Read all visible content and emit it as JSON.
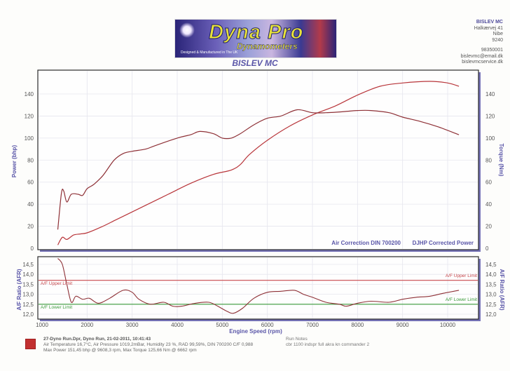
{
  "header": {
    "logo": {
      "brand": "Dyna Pro",
      "subtitle": "Dynamometers",
      "tagline": "Designed & Manufactured in The UK"
    },
    "title": "BISLEV MC",
    "company": {
      "name": "BISLEV MC",
      "street": "Halkærvej 41",
      "city": "Nibe",
      "postcode": "9240",
      "phone": "98350001",
      "email": "bislevmc@email.dk",
      "website": "bislevmcservice.dk"
    }
  },
  "power_chart": {
    "left_label": "Power (bhp)",
    "right_label": "Torque (Nm)",
    "annotation_correction": "Air Correction DIN 700200",
    "annotation_power": "DJHP Corrected Power"
  },
  "afr_chart": {
    "left_label": "A/F Ratio (AFR)",
    "right_label": "A/F Ratio (AFR)",
    "upper_limit_label": "A/F Upper Limit",
    "lower_limit_label": "A/F Lower Limit",
    "xlabel": "Engine Speed (rpm)"
  },
  "footer": {
    "run_line": "27-Dyno Run.Dpr,   Dyno Run,   21-02-2011,   10:41:43",
    "conditions": "Air Temperature 16,7°C, Air Pressure 1019,2mBar, Humidity 23 %, RAD 99,59%,   DIN 700200  C/F 0,988",
    "maxima": "Max Power 151,45 bhp @ 9608,3 rpm, Max Torque 125,66 Nm @ 6662 rpm",
    "notes_label": "Run Notes",
    "notes_text": "cbr 1100 indspr full akra kn commander 2",
    "run_color": "#c23030"
  },
  "colors": {
    "curve": "#b8353a",
    "torque_curve": "#8e3036",
    "upper_limit": "#c8484c",
    "lower_limit": "#3a9a3a",
    "axis_text": "#5a56a8",
    "frame_shadow": "#5c58a8"
  },
  "chart_data": [
    {
      "type": "line",
      "title": "BISLEV MC",
      "xlabel": "Engine Speed (rpm)",
      "ylabel": "Power (bhp)",
      "y2label": "Torque (Nm)",
      "xlim": [
        1000,
        10700
      ],
      "ylim": [
        0,
        155
      ],
      "y2lim": [
        0,
        155
      ],
      "grid": true,
      "x_ticks": [
        1000,
        2000,
        3000,
        4000,
        5000,
        6000,
        7000,
        8000,
        9000,
        10000
      ],
      "y_ticks": [
        0,
        20,
        40,
        60,
        80,
        100,
        120,
        140
      ],
      "y2_ticks": [
        0,
        20,
        40,
        60,
        80,
        100,
        120,
        140
      ],
      "series": [
        {
          "name": "Power (bhp)",
          "axis": "left",
          "x": [
            1350,
            1450,
            1550,
            1700,
            1850,
            2000,
            2300,
            2600,
            2900,
            3300,
            3800,
            4300,
            4800,
            5200,
            5400,
            5600,
            6000,
            6500,
            7000,
            7500,
            8000,
            8500,
            9000,
            9608,
            10000,
            10250
          ],
          "values": [
            3,
            10,
            8,
            12,
            13,
            14,
            19,
            25,
            31,
            39,
            49,
            59,
            67,
            71,
            76,
            85,
            98,
            111,
            121,
            129,
            139,
            147,
            150,
            151.45,
            150,
            147
          ]
        },
        {
          "name": "Torque (Nm)",
          "axis": "right",
          "x": [
            1350,
            1430,
            1480,
            1550,
            1650,
            1800,
            1900,
            2000,
            2150,
            2350,
            2600,
            2800,
            3000,
            3300,
            3500,
            4000,
            4300,
            4500,
            4800,
            5000,
            5200,
            5400,
            5700,
            6000,
            6300,
            6662,
            7000,
            7300,
            7700,
            8000,
            8300,
            8700,
            9000,
            9400,
            9800,
            10250
          ],
          "values": [
            17,
            50,
            52,
            42,
            49,
            49,
            48,
            54,
            58,
            66,
            80,
            86,
            88,
            90,
            93,
            100,
            103,
            106,
            104,
            100,
            100,
            104,
            112,
            118,
            120,
            125.66,
            123,
            123,
            124,
            125,
            125,
            123,
            119,
            115,
            110,
            103
          ]
        }
      ],
      "annotations": [
        "Air Correction DIN 700200",
        "DJHP Corrected Power"
      ]
    },
    {
      "type": "line",
      "xlabel": "Engine Speed (rpm)",
      "ylabel": "A/F Ratio (AFR)",
      "xlim": [
        1000,
        10700
      ],
      "ylim": [
        11.9,
        14.8
      ],
      "grid": true,
      "x_ticks": [
        1000,
        2000,
        3000,
        4000,
        5000,
        6000,
        7000,
        8000,
        9000,
        10000
      ],
      "y_ticks": [
        12.0,
        12.5,
        13.0,
        13.5,
        14.0,
        14.5
      ],
      "reference_lines": [
        {
          "name": "A/F Upper Limit",
          "value": 13.7
        },
        {
          "name": "A/F Lower Limit",
          "value": 12.5
        }
      ],
      "series": [
        {
          "name": "AFR",
          "x": [
            1350,
            1450,
            1550,
            1650,
            1750,
            1900,
            2050,
            2250,
            2500,
            2800,
            3000,
            3150,
            3400,
            3700,
            3900,
            4100,
            4400,
            4700,
            4900,
            5100,
            5250,
            5450,
            5700,
            6000,
            6300,
            6600,
            6800,
            7000,
            7300,
            7600,
            7750,
            8000,
            8300,
            8700,
            9000,
            9300,
            9600,
            9900,
            10250
          ],
          "values": [
            14.8,
            14.5,
            13.5,
            12.6,
            12.9,
            12.75,
            12.8,
            12.55,
            12.8,
            13.2,
            13.1,
            12.75,
            12.5,
            12.6,
            12.4,
            12.4,
            12.55,
            12.6,
            12.4,
            12.15,
            12.05,
            12.3,
            12.8,
            13.1,
            13.15,
            13.2,
            13.0,
            12.85,
            12.6,
            12.5,
            12.4,
            12.55,
            12.65,
            12.6,
            12.75,
            12.85,
            12.9,
            13.05,
            13.2
          ]
        }
      ]
    }
  ]
}
